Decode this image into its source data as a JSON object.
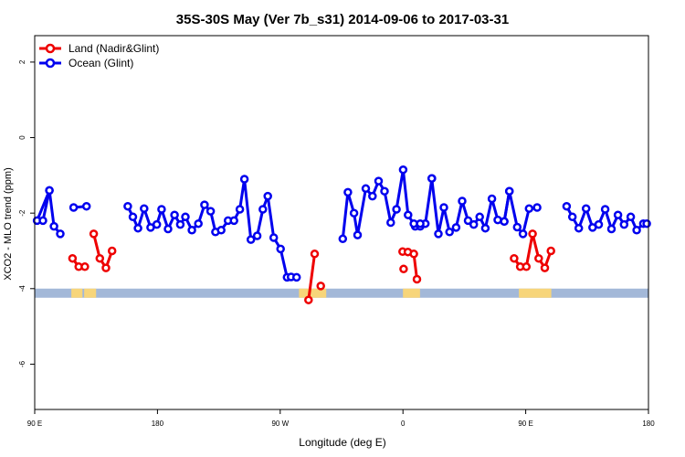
{
  "chart_data": {
    "type": "line",
    "title": "35S-30S May (Ver 7b_s31)   2014-09-06 to 2017-03-31",
    "xlabel": "Longitude (deg E)",
    "ylabel": "XCO2 - MLO trend (ppm)",
    "xlim": [
      90,
      450
    ],
    "ylim": [
      -7.2,
      2.7
    ],
    "x_ticks": [
      {
        "value": 90,
        "label": "90 E"
      },
      {
        "value": 162,
        "label": "180"
      },
      {
        "value": 234,
        "label": "90 W"
      },
      {
        "value": 306,
        "label": "0"
      },
      {
        "value": 378,
        "label": "90 E"
      },
      {
        "value": 450,
        "label": "180"
      }
    ],
    "y_ticks": [
      {
        "value": 2,
        "label": "2"
      },
      {
        "value": 0,
        "label": "0"
      },
      {
        "value": -2,
        "label": "-2"
      },
      {
        "value": -4,
        "label": "-4"
      },
      {
        "value": -6,
        "label": "-6"
      }
    ],
    "legend_position": "top-left",
    "land_strip": {
      "y": -4.12,
      "ocean_color": "#a3b8d8",
      "land_color": "#f7d57a",
      "land_ranges": [
        [
          111.5,
          118
        ],
        [
          119,
          126
        ],
        [
          245,
          261
        ],
        [
          306,
          316
        ],
        [
          374,
          393
        ]
      ]
    },
    "series": [
      {
        "name": "Land (Nadir&Glint)",
        "color": "#ee0000",
        "segments": [
          {
            "x": [
              112.2,
              115.8,
              119.4
            ],
            "y": [
              -3.2,
              -3.42,
              -3.42
            ]
          },
          {
            "x": [
              124.6,
              128.2,
              131.8,
              135.4
            ],
            "y": [
              -2.55,
              -3.2,
              -3.45,
              -3.0
            ]
          },
          {
            "x": [
              250.6,
              254.2
            ],
            "y": [
              -4.3,
              -3.08
            ]
          },
          {
            "x": [
              257.8
            ],
            "y": [
              -3.93
            ]
          },
          {
            "x": [
              306.4
            ],
            "y": [
              -3.48
            ]
          },
          {
            "x": [
              305.8,
              308.9,
              312.4,
              314.2
            ],
            "y": [
              -3.02,
              -3.03,
              -3.08,
              -3.75
            ]
          },
          {
            "x": [
              371.2,
              374.8,
              378.4,
              382.0,
              385.6,
              389.2,
              392.8
            ],
            "y": [
              -3.2,
              -3.42,
              -3.42,
              -2.55,
              -3.2,
              -3.45,
              -3.0
            ]
          }
        ]
      },
      {
        "name": "Ocean (Glint)",
        "color": "#0000ee",
        "segments": [
          {
            "x": [
              91.4,
              98.6,
              101.3,
              105.0
            ],
            "y": [
              -2.2,
              -1.4,
              -2.35,
              -2.55
            ]
          },
          {
            "x": [
              94.8,
              98.6
            ],
            "y": [
              -2.2,
              -1.4
            ]
          },
          {
            "x": [
              112.8,
              120.4
            ],
            "y": [
              -1.85,
              -1.82
            ]
          },
          {
            "x": [
              144.6,
              147.6,
              150.6,
              154.2,
              158.0,
              161.6,
              164.4,
              168.2,
              172.0,
              175.4,
              178.4,
              182.2,
              186.0,
              189.6,
              193.2,
              196.0,
              199.4,
              203.4,
              206.9,
              210.3,
              213.0,
              216.8,
              220.5,
              223.8,
              226.7,
              230.2,
              234.2,
              238.0,
              240.4,
              243.6
            ],
            "y": [
              -1.82,
              -2.1,
              -2.4,
              -1.88,
              -2.38,
              -2.3,
              -1.9,
              -2.42,
              -2.05,
              -2.3,
              -2.1,
              -2.45,
              -2.28,
              -1.78,
              -1.95,
              -2.5,
              -2.45,
              -2.2,
              -2.2,
              -1.9,
              -1.1,
              -2.7,
              -2.6,
              -1.9,
              -1.55,
              -2.65,
              -2.95,
              -3.7,
              -3.69,
              -3.7
            ]
          },
          {
            "x": [
              270.7,
              273.7,
              277.3,
              279.4,
              284.2,
              288.1,
              291.7,
              295.2,
              298.8,
              302.2,
              306.1,
              309.0,
              313.2,
              316.1,
              319.1,
              323.0
            ],
            "y": [
              -2.68,
              -1.45,
              -2.0,
              -2.58,
              -1.35,
              -1.55,
              -1.15,
              -1.42,
              -2.25,
              -1.9,
              -0.85,
              -2.05,
              -2.35,
              -2.35,
              -2.28,
              -1.08
            ]
          },
          {
            "x": [
              312.4,
              316.1
            ],
            "y": [
              -2.28,
              -2.28
            ]
          },
          {
            "x": [
              322.9,
              326.8,
              330.0,
              333.3,
              337.2,
              340.7,
              344.2,
              347.5,
              351.0,
              354.3,
              358.2,
              361.6,
              365.4,
              368.4
            ],
            "y": [
              -1.08,
              -2.55,
              -1.85,
              -2.5,
              -2.38,
              -1.68,
              -2.2,
              -2.3,
              -2.1,
              -2.4,
              -1.62,
              -2.18,
              -2.22,
              -1.42
            ]
          },
          {
            "x": [
              365.4,
              368.4,
              373.0,
              376.4,
              380.0
            ],
            "y": [
              -2.22,
              -1.42,
              -2.37,
              -2.55,
              -1.88
            ]
          },
          {
            "x": [
              384.7
            ],
            "y": [
              -1.85
            ]
          },
          {
            "x": [
              402.0,
              405.4,
              409.1,
              413.4,
              417.2,
              420.8,
              424.6,
              428.3,
              432.1,
              435.7,
              439.6,
              443.1,
              447.0,
              449.0
            ],
            "y": [
              -1.82,
              -2.1,
              -2.4,
              -1.88,
              -2.38,
              -2.3,
              -1.9,
              -2.42,
              -2.05,
              -2.3,
              -2.1,
              -2.45,
              -2.28,
              -2.28
            ]
          }
        ]
      }
    ]
  }
}
